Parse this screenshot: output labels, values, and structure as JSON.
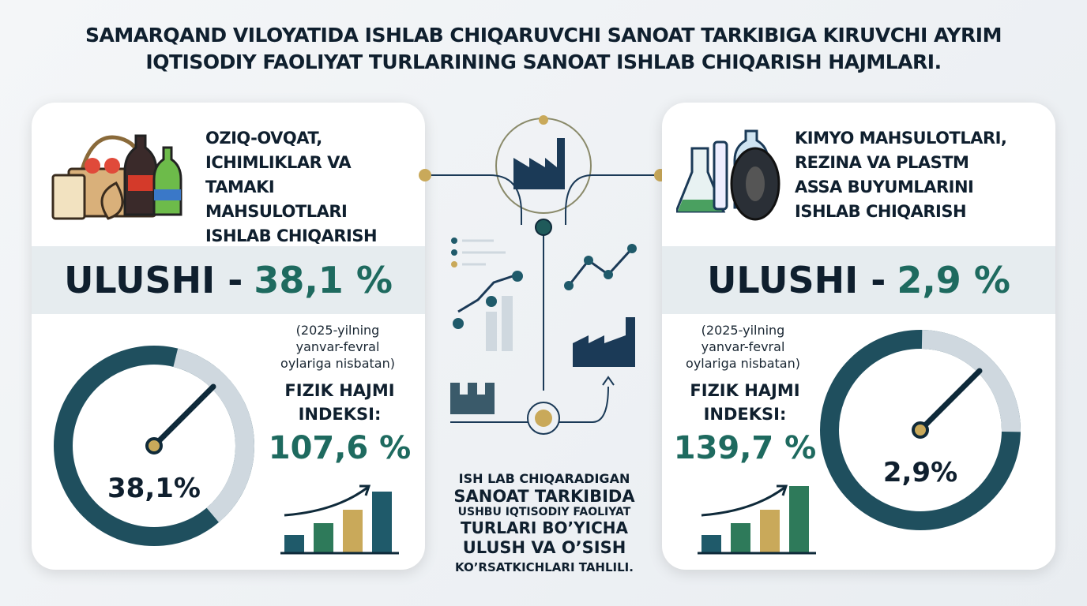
{
  "title": [
    "SAMARQAND VILOYATIDA ISHLAB CHIQARUVCHI SANOAT TARKIBIGA KIRUVCHI AYRIM",
    "IQTISODIY FAOLIYAT TURLARINING SANOAT ISHLAB CHIQARISH HAJMLARI."
  ],
  "left": {
    "heading": [
      "OZIQ-OVQAT,",
      "ICHIMLIKLAR VA TAMAKI",
      "MAHSULOTLARI",
      "ISHLAB CHIQARISH"
    ],
    "share_label": "ULUSHI -",
    "share_value": "38,1 %",
    "gauge_label": "38,1%",
    "gauge_fraction": 0.381,
    "note": [
      "(2025-yilning",
      "yanvar-fevral",
      "oylariga nisbatan)"
    ],
    "index_label": [
      "FIZIK HAJMI",
      "INDEKSI:"
    ],
    "index_value": "107,6 %",
    "icon": "food-beverage-tobacco-icon"
  },
  "right": {
    "heading": [
      "KIMYO MAHSULOTLARI,",
      "REZINA VA PLASTM",
      "ASSA BUYUMLARINI",
      "ISHLAB CHIQARISH"
    ],
    "share_label": "ULUSHI -",
    "share_value": "2,9 %",
    "gauge_label": "2,9%",
    "gauge_fraction": 0.029,
    "note": [
      "(2025-yilning",
      "yanvar-fevral",
      "oylariga nisbatan)"
    ],
    "index_label": [
      "FIZIK HAJMI",
      "INDEKSI:"
    ],
    "index_value": "139,7 %",
    "icon": "chemistry-rubber-plastic-icon"
  },
  "center": {
    "lines": [
      "ISH LAB CHIQARADIGAN",
      "SANOAT TARKIBIDA",
      "USHBU IQTISODIY FAOLIYAT",
      "TURLARI BO’YICHA",
      "ULUSH VA O’SISH",
      "KO’RSATKICHLARI TAHLILI."
    ]
  },
  "colors": {
    "teal": "#1e6a5f",
    "navy": "#1b3a57",
    "gold": "#c9a95a",
    "gray": "#cfd8df"
  }
}
